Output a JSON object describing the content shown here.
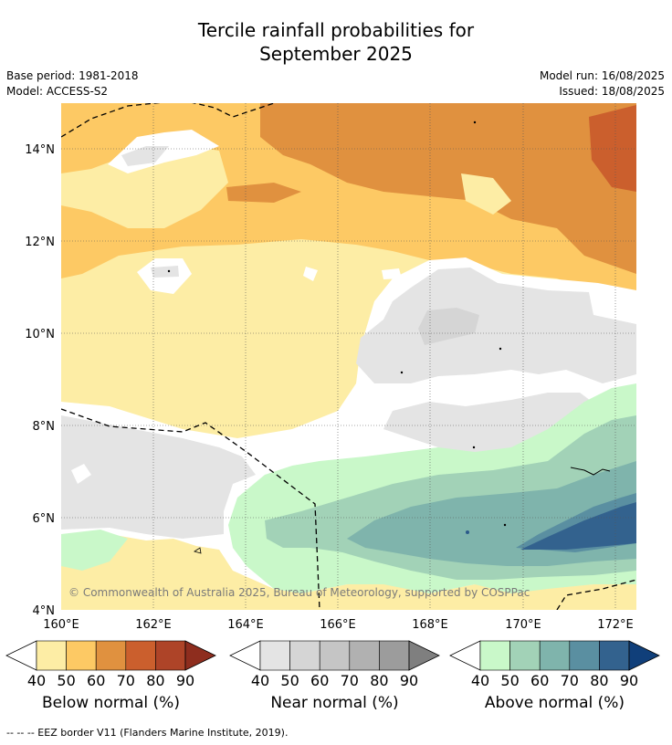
{
  "title_line1": "Tercile rainfall probabilities for",
  "title_line2": "September 2025",
  "base_period": "Base period: 1981-2018",
  "model": "Model: ACCESS-S2",
  "model_run": "Model run: 16/08/2025",
  "issued": "Issued: 18/08/2025",
  "copyright": "© Commonwealth of Australia 2025, Bureau of Meteorology, supported by COSPPac",
  "x_ticks": [
    "160°E",
    "162°E",
    "164°E",
    "166°E",
    "168°E",
    "170°E",
    "172°E"
  ],
  "y_ticks": [
    "14°N",
    "12°N",
    "10°N",
    "8°N",
    "6°N",
    "4°N"
  ],
  "legends": [
    {
      "name": "below",
      "label": "Below normal (%)",
      "ticks": [
        "40",
        "50",
        "60",
        "70",
        "80",
        "90"
      ],
      "colors": [
        "#fdeda5",
        "#fdc964",
        "#e0913f",
        "#cb5f2d",
        "#ae4428",
        "#8e2d1e"
      ]
    },
    {
      "name": "near",
      "label": "Near normal (%)",
      "ticks": [
        "40",
        "50",
        "60",
        "70",
        "80",
        "90"
      ],
      "colors": [
        "#e4e4e4",
        "#d5d5d5",
        "#c5c5c5",
        "#b1b1b1",
        "#9c9c9c",
        "#7f7f7f"
      ]
    },
    {
      "name": "above",
      "label": "Above normal (%)",
      "ticks": [
        "40",
        "50",
        "60",
        "70",
        "80",
        "90"
      ],
      "colors": [
        "#c9f8c9",
        "#a2d2b7",
        "#7fb4ac",
        "#5a8fa1",
        "#33628e",
        "#103f7a"
      ]
    }
  ],
  "footer": "--  --  -- EEZ border V11 (Flanders Marine Institute, 2019)."
}
